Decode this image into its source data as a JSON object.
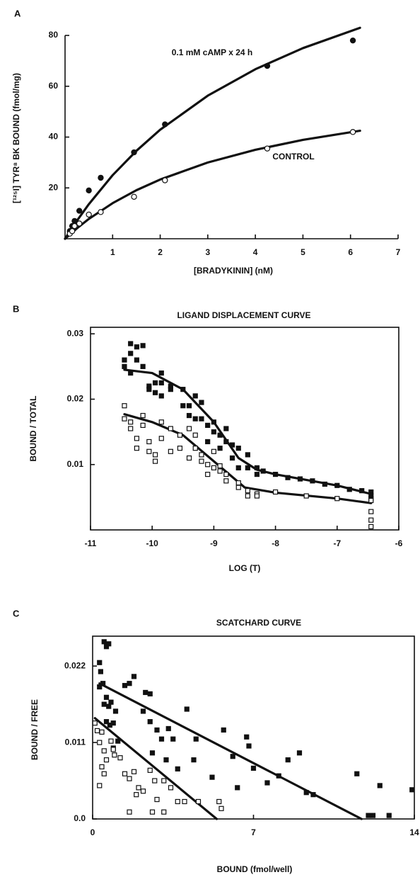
{
  "chart_data": [
    {
      "type": "scatter",
      "panel": "A",
      "frame": "axes",
      "xlabel": "[BRADYKININ] (nM)",
      "ylabel": "[¹²⁵I] TYR⁸ BK BOUND (fmol/mg)",
      "xlim": [
        0,
        7
      ],
      "xticks": [
        1,
        2,
        3,
        4,
        5,
        6,
        7
      ],
      "ylim": [
        0,
        80
      ],
      "yticks": [
        20,
        40,
        60,
        80
      ],
      "series": [
        {
          "name": "0.1 mM cAMP x 24 h",
          "marker": "filled-circle",
          "x": [
            0.1,
            0.15,
            0.2,
            0.3,
            0.5,
            0.75,
            1.45,
            2.1,
            4.25,
            6.05
          ],
          "values": [
            3,
            5,
            7,
            11,
            19,
            24,
            34,
            45,
            68,
            78
          ],
          "fit": {
            "x": [
              0,
              0.25,
              0.5,
              1,
              1.5,
              2,
              3,
              4,
              5,
              6.2
            ],
            "values": [
              0,
              7.1,
              13.6,
              25,
              34.6,
              42.9,
              56.3,
              66.7,
              75,
              83
            ]
          }
        },
        {
          "name": "CONTROL",
          "marker": "open-circle",
          "x": [
            0.1,
            0.15,
            0.2,
            0.3,
            0.5,
            0.75,
            1.45,
            2.1,
            4.25,
            6.05
          ],
          "values": [
            2,
            3,
            5,
            6,
            9.5,
            10.5,
            16.5,
            23,
            35.5,
            42
          ],
          "fit": {
            "x": [
              0,
              0.25,
              0.5,
              1,
              1.5,
              2,
              3,
              4,
              5,
              6.2
            ],
            "values": [
              0,
              4.1,
              7.8,
              14,
              19.1,
              23.3,
              30,
              35,
              38.9,
              42.5
            ]
          }
        }
      ]
    },
    {
      "type": "scatter",
      "panel": "B",
      "frame": "box",
      "title": "LIGAND DISPLACEMENT CURVE",
      "xlabel": "LOG (T)",
      "ylabel": "BOUND / TOTAL",
      "xlim": [
        -11,
        -6
      ],
      "xticks": [
        -11,
        -10,
        -9,
        -8,
        -7,
        -6
      ],
      "ylim": [
        0,
        0.031
      ],
      "yticks": [
        0.01,
        0.02,
        0.03
      ],
      "series": [
        {
          "marker": "filled-square",
          "x": [
            -10.45,
            -10.45,
            -10.35,
            -10.35,
            -10.35,
            -10.25,
            -10.25,
            -10.15,
            -10.15,
            -10.05,
            -10.05,
            -9.95,
            -9.95,
            -9.85,
            -9.85,
            -9.85,
            -9.7,
            -9.7,
            -9.5,
            -9.5,
            -9.4,
            -9.4,
            -9.3,
            -9.3,
            -9.2,
            -9.2,
            -9.1,
            -9.1,
            -9.0,
            -9.0,
            -8.9,
            -8.9,
            -8.8,
            -8.8,
            -8.7,
            -8.7,
            -8.6,
            -8.6,
            -8.45,
            -8.45,
            -8.3,
            -8.3,
            -8.2,
            -8.0,
            -7.8,
            -7.6,
            -7.4,
            -7.2,
            -7.0,
            -6.8,
            -6.6,
            -6.45,
            -6.45,
            -6.45
          ],
          "values": [
            0.026,
            0.025,
            0.0285,
            0.027,
            0.024,
            0.028,
            0.026,
            0.0282,
            0.025,
            0.022,
            0.0215,
            0.0225,
            0.021,
            0.024,
            0.0225,
            0.0205,
            0.0215,
            0.022,
            0.0215,
            0.019,
            0.019,
            0.0175,
            0.0205,
            0.017,
            0.0195,
            0.017,
            0.016,
            0.0135,
            0.0165,
            0.015,
            0.0145,
            0.0125,
            0.0155,
            0.0135,
            0.013,
            0.011,
            0.0125,
            0.0095,
            0.0115,
            0.0095,
            0.0095,
            0.0085,
            0.009,
            0.0085,
            0.008,
            0.0078,
            0.0075,
            0.007,
            0.0068,
            0.0062,
            0.006,
            0.0058,
            0.0052,
            0.0048
          ],
          "fit": {
            "x": [
              -10.45,
              -10,
              -9.5,
              -9,
              -8.6,
              -8.3,
              -8,
              -7,
              -6.45
            ],
            "values": [
              0.0245,
              0.024,
              0.0215,
              0.0165,
              0.011,
              0.0092,
              0.0085,
              0.0068,
              0.0055
            ]
          }
        },
        {
          "marker": "open-square",
          "x": [
            -10.45,
            -10.45,
            -10.35,
            -10.35,
            -10.25,
            -10.25,
            -10.15,
            -10.15,
            -10.05,
            -10.05,
            -9.95,
            -9.95,
            -9.85,
            -9.85,
            -9.7,
            -9.7,
            -9.55,
            -9.55,
            -9.4,
            -9.4,
            -9.3,
            -9.3,
            -9.2,
            -9.2,
            -9.1,
            -9.1,
            -9.0,
            -9.0,
            -8.9,
            -8.9,
            -8.8,
            -8.8,
            -8.6,
            -8.6,
            -8.45,
            -8.45,
            -8.3,
            -8.3,
            -8.0,
            -7.5,
            -7.0,
            -6.45,
            -6.45,
            -6.45,
            -6.45
          ],
          "values": [
            0.019,
            0.017,
            0.0165,
            0.0155,
            0.014,
            0.0125,
            0.0175,
            0.016,
            0.0135,
            0.012,
            0.0115,
            0.0105,
            0.0165,
            0.014,
            0.0155,
            0.012,
            0.0145,
            0.0125,
            0.0155,
            0.011,
            0.0145,
            0.0125,
            0.0115,
            0.0105,
            0.01,
            0.0085,
            0.012,
            0.0095,
            0.009,
            0.0098,
            0.0085,
            0.0075,
            0.0072,
            0.0065,
            0.006,
            0.0052,
            0.0055,
            0.0052,
            0.0058,
            0.0052,
            0.0048,
            0.0045,
            0.0028,
            0.0015,
            0.0005
          ],
          "fit": {
            "x": [
              -10.45,
              -10,
              -9.5,
              -9,
              -8.5,
              -8,
              -7,
              -6.45
            ],
            "values": [
              0.0177,
              0.0165,
              0.0145,
              0.0105,
              0.0065,
              0.0057,
              0.0048,
              0.0041
            ]
          }
        }
      ]
    },
    {
      "type": "scatter",
      "panel": "C",
      "frame": "box",
      "title": "SCATCHARD CURVE",
      "xlabel": "BOUND (fmol/well)",
      "ylabel": "BOUND / FREE",
      "xlim": [
        0,
        14
      ],
      "xticks": [
        0,
        7,
        14
      ],
      "ylim": [
        0,
        0.0263
      ],
      "yticks": [
        {
          "value": 0,
          "label": "0.0"
        },
        0.011,
        0.022
      ],
      "series": [
        {
          "marker": "filled-square",
          "x": [
            0.3,
            0.35,
            0.5,
            0.6,
            0.7,
            0.3,
            0.45,
            0.5,
            0.6,
            0.7,
            0.8,
            1.0,
            0.6,
            0.75,
            0.9,
            1.1,
            0.9,
            1.4,
            1.6,
            1.8,
            2.3,
            2.5,
            2.2,
            2.5,
            2.8,
            3.0,
            2.6,
            3.3,
            3.5,
            3.2,
            3.7,
            4.1,
            4.5,
            4.4,
            5.2,
            5.7,
            6.1,
            6.3,
            6.8,
            6.7,
            7.0,
            7.6,
            8.1,
            8.5,
            9.0,
            9.3,
            9.6,
            11.5,
            12.0,
            12.2,
            12.5,
            12.9,
            13.9
          ],
          "values": [
            0.0225,
            0.0212,
            0.0255,
            0.0248,
            0.0252,
            0.019,
            0.0195,
            0.0165,
            0.0175,
            0.0162,
            0.0168,
            0.0155,
            0.014,
            0.0135,
            0.0138,
            0.0112,
            0.0102,
            0.0192,
            0.0195,
            0.0205,
            0.0182,
            0.018,
            0.0155,
            0.014,
            0.0128,
            0.0115,
            0.0095,
            0.013,
            0.0115,
            0.0085,
            0.0072,
            0.0158,
            0.0115,
            0.0085,
            0.006,
            0.0128,
            0.009,
            0.0045,
            0.0105,
            0.0118,
            0.0073,
            0.0052,
            0.0062,
            0.0085,
            0.0095,
            0.0038,
            0.0035,
            0.0065,
            0.0005,
            0.0005,
            0.0048,
            0.0005,
            0.0042
          ],
          "fit": {
            "x": [
              0.3,
              11.7
            ],
            "values": [
              0.0195,
              0
            ]
          }
        },
        {
          "marker": "open-square",
          "x": [
            0.1,
            0.2,
            0.3,
            0.4,
            0.5,
            0.6,
            0.4,
            0.5,
            0.3,
            0.8,
            0.9,
            0.95,
            1.2,
            1.4,
            1.6,
            1.8,
            2.0,
            1.9,
            2.2,
            2.5,
            2.7,
            2.8,
            3.1,
            3.4,
            3.7,
            2.6,
            3.1,
            1.6,
            4.0,
            4.6,
            5.5,
            5.6
          ],
          "values": [
            0.0138,
            0.0127,
            0.011,
            0.0125,
            0.0098,
            0.0085,
            0.0075,
            0.0065,
            0.0048,
            0.0112,
            0.01,
            0.0092,
            0.0088,
            0.0065,
            0.0058,
            0.0068,
            0.0045,
            0.0035,
            0.004,
            0.007,
            0.0055,
            0.0028,
            0.0055,
            0.0045,
            0.0025,
            0.001,
            0.001,
            0.001,
            0.0025,
            0.0025,
            0.0025,
            0.0015
          ],
          "fit": {
            "x": [
              0.1,
              5.4
            ],
            "values": [
              0.0145,
              0
            ]
          }
        }
      ]
    }
  ]
}
